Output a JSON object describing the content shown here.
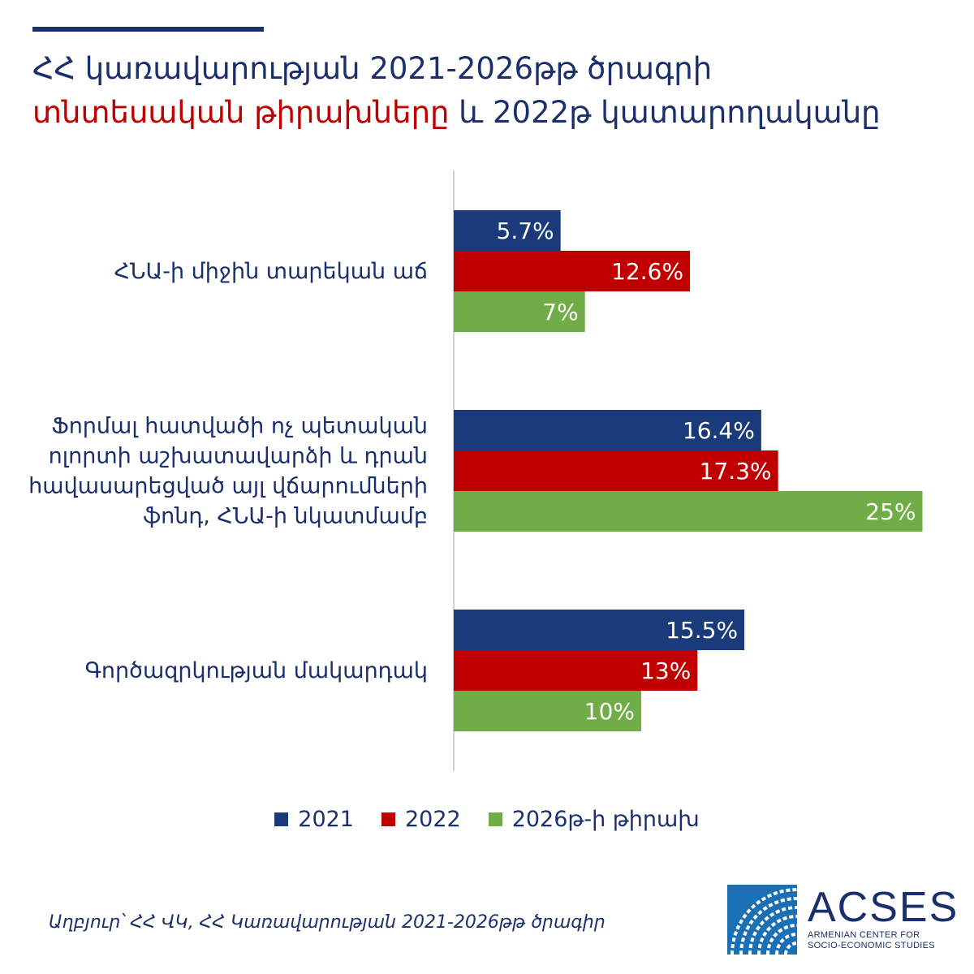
{
  "header": {
    "title_line1": "ՀՀ կառավարության 2021-2026թթ ծրագրի",
    "title_line2_highlight": "տնտեսական թիրախները",
    "title_line2_rest": " և 2022թ կատարողականը"
  },
  "colors": {
    "navy": "#1a3a7a",
    "red": "#c00000",
    "green": "#70ad47",
    "text": "#1a2f6b"
  },
  "chart_data": {
    "type": "bar",
    "orientation": "horizontal",
    "categories": [
      "ՀՆԱ-ի միջին տարեկան աճ",
      "Ֆորմալ հատվածի ոչ պետական ոլորտի աշխատավարձի և դրան հավասարեցված այլ վճարումների ֆոնդ, ՀՆԱ-ի նկատմամբ",
      "Գործազրկության մակարդակ"
    ],
    "category_lines": [
      [
        "ՀՆԱ-ի միջին տարեկան աճ"
      ],
      [
        "Ֆորմալ հատվածի ոչ պետական",
        "ոլորտի աշխատավարձի և դրան",
        "հավասարեցված այլ վճարումների",
        "ֆոնդ, ՀՆԱ-ի նկատմամբ"
      ],
      [
        "Գործազրկության մակարդակ"
      ]
    ],
    "series": [
      {
        "name": "2021",
        "values": [
          5.7,
          16.4,
          15.5
        ],
        "labels": [
          "5.7%",
          "16.4%",
          "15.5%"
        ],
        "color": "#1a3a7a"
      },
      {
        "name": "2022",
        "values": [
          12.6,
          17.3,
          13
        ],
        "labels": [
          "12.6%",
          "17.3%",
          "13%"
        ],
        "color": "#c00000"
      },
      {
        "name": "2026թ-ի թիրախ",
        "values": [
          7,
          25,
          10
        ],
        "labels": [
          "7%",
          "25%",
          "10%"
        ],
        "color": "#70ad47"
      }
    ],
    "xlim": [
      0,
      25
    ],
    "grid": false,
    "legend": "bottom"
  },
  "source": "Աղբյուր՝ ՀՀ ՎԿ, ՀՀ Կառավարության 2021-2026թթ ծրագիր",
  "logo": {
    "name": "ACSES",
    "sub_line1": "ARMENIAN CENTER FOR",
    "sub_line2": "SOCIO-ECONOMIC STUDIES"
  }
}
